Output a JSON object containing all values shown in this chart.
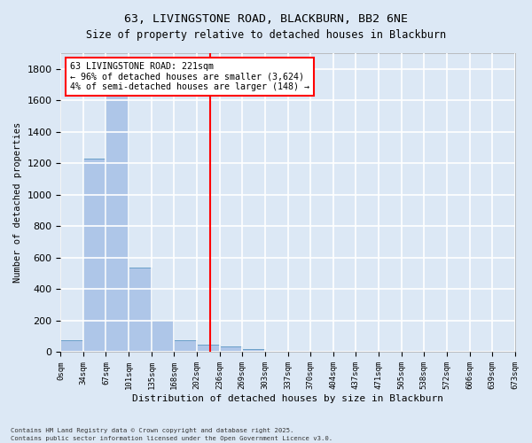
{
  "title_line1": "63, LIVINGSTONE ROAD, BLACKBURN, BB2 6NE",
  "title_line2": "Size of property relative to detached houses in Blackburn",
  "xlabel": "Distribution of detached houses by size in Blackburn",
  "ylabel": "Number of detached properties",
  "annotation_line1": "63 LIVINGSTONE ROAD: 221sqm",
  "annotation_line2": "← 96% of detached houses are smaller (3,624)",
  "annotation_line3": "4% of semi-detached houses are larger (148) →",
  "bin_labels": [
    "0sqm",
    "34sqm",
    "67sqm",
    "101sqm",
    "135sqm",
    "168sqm",
    "202sqm",
    "236sqm",
    "269sqm",
    "303sqm",
    "337sqm",
    "370sqm",
    "404sqm",
    "437sqm",
    "471sqm",
    "505sqm",
    "538sqm",
    "572sqm",
    "606sqm",
    "639sqm",
    "673sqm"
  ],
  "bin_edges": [
    0,
    34,
    67,
    101,
    135,
    168,
    202,
    236,
    269,
    303,
    337,
    370,
    404,
    437,
    471,
    505,
    538,
    572,
    606,
    639,
    673
  ],
  "bar_values": [
    75,
    1230,
    1660,
    540,
    200,
    75,
    50,
    35,
    20,
    5,
    0,
    0,
    0,
    0,
    0,
    0,
    0,
    0,
    0,
    0
  ],
  "bar_color": "#aec6e8",
  "bar_edge_color": "#6a9fc8",
  "vline_x": 221,
  "vline_color": "red",
  "ylim": [
    0,
    1900
  ],
  "yticks": [
    0,
    200,
    400,
    600,
    800,
    1000,
    1200,
    1400,
    1600,
    1800
  ],
  "background_color": "#dce8f5",
  "grid_color": "white",
  "annotation_box_color": "white",
  "annotation_box_edge": "red",
  "footer_line1": "Contains HM Land Registry data © Crown copyright and database right 2025.",
  "footer_line2": "Contains public sector information licensed under the Open Government Licence v3.0."
}
